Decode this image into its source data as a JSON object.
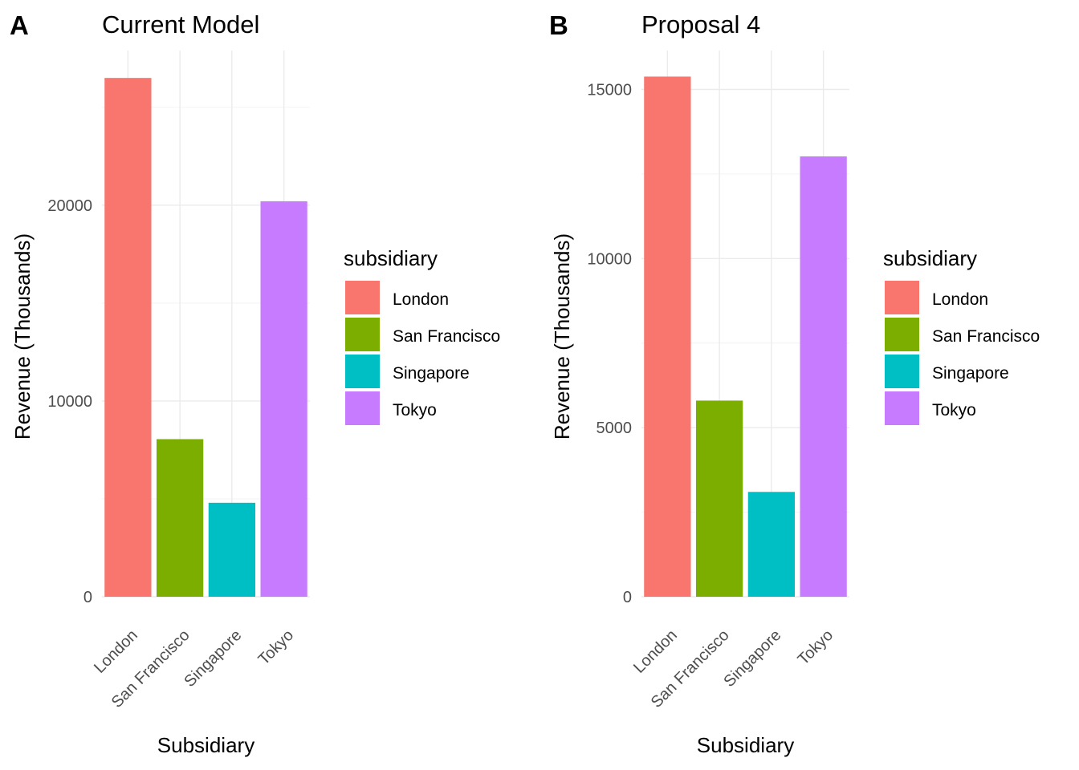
{
  "chart_data": [
    {
      "type": "bar",
      "tag": "A",
      "title": "Current Model",
      "xlabel": "Subsidiary",
      "ylabel": "Revenue (Thousands)",
      "categories": [
        "London",
        "San Francisco",
        "Singapore",
        "Tokyo"
      ],
      "values": [
        26500,
        8050,
        4800,
        20200
      ],
      "colors": [
        "#F8766D",
        "#7CAE00",
        "#00BFC4",
        "#C77CFF"
      ],
      "ylim": [
        0,
        27900
      ],
      "yticks": [
        0,
        10000,
        20000
      ],
      "yticks_minor": [
        5000,
        15000,
        25000
      ],
      "grid": true,
      "legend": {
        "title": "subsidiary",
        "entries": [
          "London",
          "San Francisco",
          "Singapore",
          "Tokyo"
        ],
        "position": "right"
      }
    },
    {
      "type": "bar",
      "tag": "B",
      "title": "Proposal 4",
      "xlabel": "Subsidiary",
      "ylabel": "Revenue (Thousands)",
      "categories": [
        "London",
        "San Francisco",
        "Singapore",
        "Tokyo"
      ],
      "values": [
        15380,
        5800,
        3100,
        13020
      ],
      "colors": [
        "#F8766D",
        "#7CAE00",
        "#00BFC4",
        "#C77CFF"
      ],
      "ylim": [
        0,
        16150
      ],
      "yticks": [
        0,
        5000,
        10000,
        15000
      ],
      "yticks_minor": [
        2500,
        7500,
        12500
      ],
      "grid": true,
      "legend": {
        "title": "subsidiary",
        "entries": [
          "London",
          "San Francisco",
          "Singapore",
          "Tokyo"
        ],
        "position": "right"
      }
    }
  ]
}
